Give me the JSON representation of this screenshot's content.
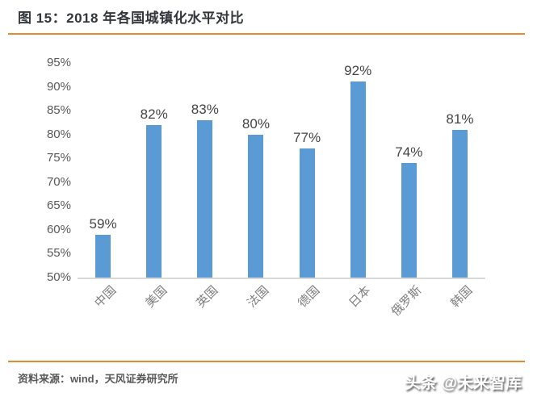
{
  "header": {
    "title": "图 15：2018 年各国城镇化水平对比"
  },
  "footer": {
    "source": "资料来源：wind，天风证券研究所",
    "watermark": "头条 @未来智库"
  },
  "colors": {
    "accent_line": "#e78a2e",
    "bar": "#5b9bd5",
    "axis_line": "#d9d9d9",
    "title_text": "#33373d",
    "ytick_text": "#595959",
    "value_text": "#444444",
    "category_text": "#7f7f7f"
  },
  "chart_data": {
    "type": "bar",
    "title": "图 15：2018 年各国城镇化水平对比",
    "categories": [
      "中国",
      "美国",
      "英国",
      "法国",
      "德国",
      "日本",
      "俄罗斯",
      "韩国"
    ],
    "values": [
      59,
      82,
      83,
      80,
      77,
      92,
      74,
      81
    ],
    "value_labels": [
      "59%",
      "82%",
      "83%",
      "80%",
      "77%",
      "92%",
      "74%",
      "81%"
    ],
    "unit": "%",
    "xlabel": "",
    "ylabel": "",
    "ylim": [
      50,
      95
    ],
    "ytick_step": 5,
    "yticks": [
      "50%",
      "55%",
      "60%",
      "65%",
      "70%",
      "75%",
      "80%",
      "85%",
      "90%",
      "95%"
    ],
    "grid": false,
    "legend": false,
    "bar_color": "#5b9bd5",
    "category_rotation_deg": -45
  }
}
